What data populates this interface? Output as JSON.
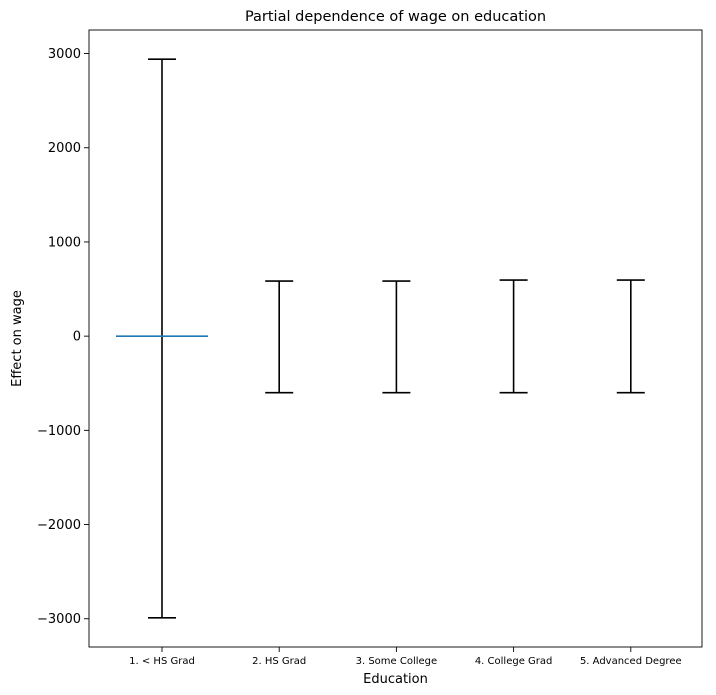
{
  "chart_data": {
    "type": "errorbar",
    "title": "Partial dependence of wage on education",
    "xlabel": "Education",
    "ylabel": "Effect on wage",
    "categories": [
      "1. < HS Grad",
      "2. HS Grad",
      "3. Some College",
      "4. College Grad",
      "5. Advanced Degree"
    ],
    "ylim": [
      -3300,
      3250
    ],
    "yticks": [
      -3000,
      -2000,
      -1000,
      0,
      1000,
      2000,
      3000
    ],
    "ytick_labels": [
      "−3000",
      "−2000",
      "−1000",
      "0",
      "1000",
      "2000",
      "3000"
    ],
    "series": [
      {
        "values": [
          0,
          0,
          0,
          0,
          0
        ],
        "lower": [
          -2990,
          -600,
          -600,
          -600,
          -600
        ],
        "upper": [
          2940,
          585,
          585,
          595,
          595
        ]
      }
    ],
    "reference_line": {
      "category_index": 0,
      "value": 0,
      "color": "#1f77b4"
    },
    "errorbar_color": "#000000",
    "grid": false,
    "legend": "none"
  }
}
